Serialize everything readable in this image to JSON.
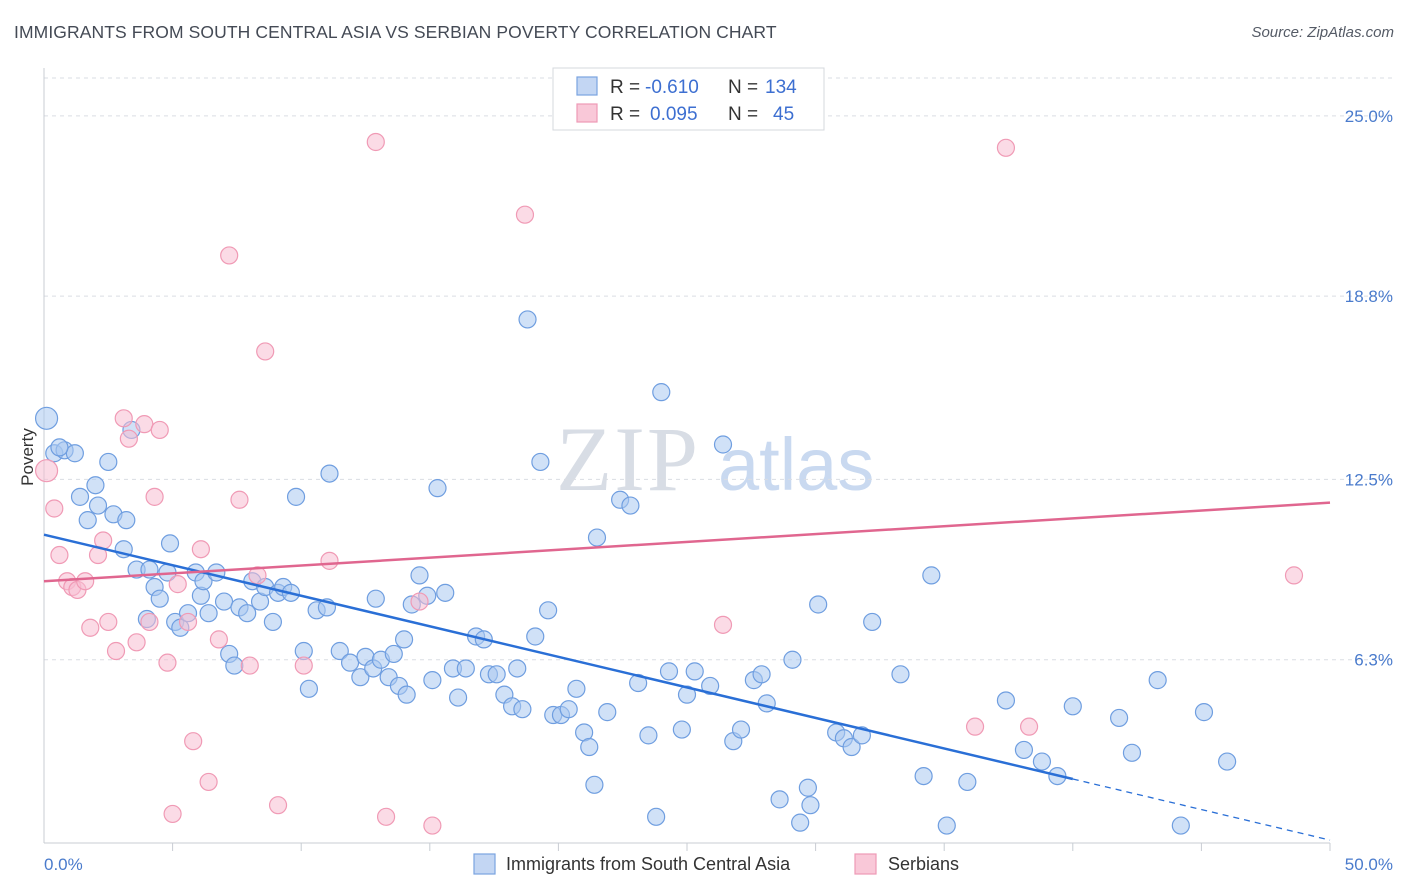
{
  "title": "IMMIGRANTS FROM SOUTH CENTRAL ASIA VS SERBIAN POVERTY CORRELATION CHART",
  "source": "Source: ZipAtlas.com",
  "watermark": {
    "zip": "ZIP",
    "atlas": "atlas"
  },
  "colors": {
    "blue": "#6f9ee0",
    "blue_line": "#2a6fd6",
    "pink": "#f09ab5",
    "pink_line": "#e0668f",
    "axis_text": "#4a7bcc",
    "grid": "#dadde3"
  },
  "legend": {
    "rows": [
      {
        "r_label": "R =",
        "r_value": "-0.610",
        "n_label": "N =",
        "n_value": "134"
      },
      {
        "r_label": "R =",
        "r_value": "0.095",
        "n_label": "N =",
        "n_value": "45"
      }
    ]
  },
  "bottom_legend": [
    "Immigrants from South Central Asia",
    "Serbians"
  ],
  "chart_data": {
    "type": "scatter",
    "title": "IMMIGRANTS FROM SOUTH CENTRAL ASIA VS SERBIAN POVERTY CORRELATION CHART",
    "xlabel": "",
    "ylabel": "Poverty",
    "xlim": [
      0,
      50
    ],
    "ylim": [
      0,
      26.3
    ],
    "x_tick_labels": [
      "0.0%",
      "50.0%"
    ],
    "y_ticks": [
      6.3,
      12.5,
      18.8,
      25.0
    ],
    "y_tick_labels": [
      "6.3%",
      "12.5%",
      "18.8%",
      "25.0%"
    ],
    "grid": true,
    "series": [
      {
        "name": "Immigrants from South Central Asia",
        "color": "#6f9ee0",
        "trend": {
          "x": [
            0,
            40
          ],
          "y": [
            10.6,
            2.2
          ],
          "dashed_to": [
            50,
            0.1
          ]
        },
        "points": [
          [
            0.1,
            14.6
          ],
          [
            0.4,
            13.4
          ],
          [
            0.8,
            13.5
          ],
          [
            1.2,
            13.4
          ],
          [
            0.6,
            13.6
          ],
          [
            1.4,
            11.9
          ],
          [
            1.7,
            11.1
          ],
          [
            2.0,
            12.3
          ],
          [
            2.1,
            11.6
          ],
          [
            2.5,
            13.1
          ],
          [
            2.7,
            11.3
          ],
          [
            3.2,
            11.1
          ],
          [
            3.1,
            10.1
          ],
          [
            3.4,
            14.2
          ],
          [
            3.6,
            9.4
          ],
          [
            4.0,
            7.7
          ],
          [
            4.1,
            9.4
          ],
          [
            4.3,
            8.8
          ],
          [
            4.5,
            8.4
          ],
          [
            4.8,
            9.3
          ],
          [
            4.9,
            10.3
          ],
          [
            5.1,
            7.6
          ],
          [
            5.3,
            7.4
          ],
          [
            5.6,
            7.9
          ],
          [
            5.9,
            9.3
          ],
          [
            6.1,
            8.5
          ],
          [
            6.2,
            9.0
          ],
          [
            6.4,
            7.9
          ],
          [
            6.7,
            9.3
          ],
          [
            7.0,
            8.3
          ],
          [
            7.2,
            6.5
          ],
          [
            7.4,
            6.1
          ],
          [
            7.6,
            8.1
          ],
          [
            7.9,
            7.9
          ],
          [
            8.1,
            9.0
          ],
          [
            8.4,
            8.3
          ],
          [
            8.6,
            8.8
          ],
          [
            8.9,
            7.6
          ],
          [
            9.1,
            8.6
          ],
          [
            9.3,
            8.8
          ],
          [
            9.6,
            8.6
          ],
          [
            9.8,
            11.9
          ],
          [
            10.1,
            6.6
          ],
          [
            10.3,
            5.3
          ],
          [
            10.6,
            8.0
          ],
          [
            11.0,
            8.1
          ],
          [
            11.1,
            12.7
          ],
          [
            11.5,
            6.6
          ],
          [
            11.9,
            6.2
          ],
          [
            12.3,
            5.7
          ],
          [
            12.5,
            6.4
          ],
          [
            12.8,
            6.0
          ],
          [
            12.9,
            8.4
          ],
          [
            13.1,
            6.3
          ],
          [
            13.4,
            5.7
          ],
          [
            13.6,
            6.5
          ],
          [
            13.8,
            5.4
          ],
          [
            14.0,
            7.0
          ],
          [
            14.1,
            5.1
          ],
          [
            14.3,
            8.2
          ],
          [
            14.6,
            9.2
          ],
          [
            14.9,
            8.5
          ],
          [
            15.1,
            5.6
          ],
          [
            15.3,
            12.2
          ],
          [
            15.6,
            8.6
          ],
          [
            15.9,
            6.0
          ],
          [
            16.1,
            5.0
          ],
          [
            16.4,
            6.0
          ],
          [
            16.8,
            7.1
          ],
          [
            17.1,
            7.0
          ],
          [
            17.3,
            5.8
          ],
          [
            17.6,
            5.8
          ],
          [
            17.9,
            5.1
          ],
          [
            18.2,
            4.7
          ],
          [
            18.4,
            6.0
          ],
          [
            18.6,
            4.6
          ],
          [
            18.8,
            18.0
          ],
          [
            19.1,
            7.1
          ],
          [
            19.3,
            13.1
          ],
          [
            19.6,
            8.0
          ],
          [
            19.8,
            4.4
          ],
          [
            20.1,
            4.4
          ],
          [
            20.4,
            4.6
          ],
          [
            20.7,
            5.3
          ],
          [
            21.0,
            3.8
          ],
          [
            21.2,
            3.3
          ],
          [
            21.4,
            2.0
          ],
          [
            21.5,
            10.5
          ],
          [
            21.9,
            4.5
          ],
          [
            22.4,
            11.8
          ],
          [
            22.8,
            11.6
          ],
          [
            23.1,
            5.5
          ],
          [
            23.5,
            3.7
          ],
          [
            23.8,
            0.9
          ],
          [
            24.0,
            15.5
          ],
          [
            24.3,
            5.9
          ],
          [
            24.8,
            3.9
          ],
          [
            25.0,
            5.1
          ],
          [
            25.3,
            5.9
          ],
          [
            25.9,
            5.4
          ],
          [
            26.4,
            13.7
          ],
          [
            26.8,
            3.5
          ],
          [
            27.1,
            3.9
          ],
          [
            27.6,
            5.6
          ],
          [
            27.9,
            5.8
          ],
          [
            28.1,
            4.8
          ],
          [
            28.6,
            1.5
          ],
          [
            29.1,
            6.3
          ],
          [
            29.4,
            0.7
          ],
          [
            29.7,
            1.9
          ],
          [
            29.8,
            1.3
          ],
          [
            30.1,
            8.2
          ],
          [
            30.8,
            3.8
          ],
          [
            31.1,
            3.6
          ],
          [
            31.4,
            3.3
          ],
          [
            31.8,
            3.7
          ],
          [
            32.2,
            7.6
          ],
          [
            33.3,
            5.8
          ],
          [
            34.2,
            2.3
          ],
          [
            34.5,
            9.2
          ],
          [
            35.1,
            0.6
          ],
          [
            35.9,
            2.1
          ],
          [
            37.4,
            4.9
          ],
          [
            38.1,
            3.2
          ],
          [
            38.8,
            2.8
          ],
          [
            39.4,
            2.3
          ],
          [
            40.0,
            4.7
          ],
          [
            41.8,
            4.3
          ],
          [
            42.3,
            3.1
          ],
          [
            43.3,
            5.6
          ],
          [
            44.2,
            0.6
          ],
          [
            45.1,
            4.5
          ],
          [
            46.0,
            2.8
          ]
        ]
      },
      {
        "name": "Serbians",
        "color": "#f09ab5",
        "trend": {
          "x": [
            0,
            50
          ],
          "y": [
            9.0,
            11.7
          ]
        },
        "points": [
          [
            0.1,
            12.8
          ],
          [
            0.4,
            11.5
          ],
          [
            0.6,
            9.9
          ],
          [
            0.9,
            9.0
          ],
          [
            1.1,
            8.8
          ],
          [
            1.3,
            8.7
          ],
          [
            1.6,
            9.0
          ],
          [
            1.8,
            7.4
          ],
          [
            2.1,
            9.9
          ],
          [
            2.3,
            10.4
          ],
          [
            2.5,
            7.6
          ],
          [
            2.8,
            6.6
          ],
          [
            3.1,
            14.6
          ],
          [
            3.3,
            13.9
          ],
          [
            3.6,
            6.9
          ],
          [
            3.9,
            14.4
          ],
          [
            4.1,
            7.6
          ],
          [
            4.3,
            11.9
          ],
          [
            4.5,
            14.2
          ],
          [
            4.8,
            6.2
          ],
          [
            5.0,
            1.0
          ],
          [
            5.2,
            8.9
          ],
          [
            5.6,
            7.6
          ],
          [
            5.8,
            3.5
          ],
          [
            6.1,
            10.1
          ],
          [
            6.4,
            2.1
          ],
          [
            6.8,
            7.0
          ],
          [
            7.2,
            20.2
          ],
          [
            7.6,
            11.8
          ],
          [
            8.0,
            6.1
          ],
          [
            8.3,
            9.2
          ],
          [
            8.6,
            16.9
          ],
          [
            9.1,
            1.3
          ],
          [
            10.1,
            6.1
          ],
          [
            11.1,
            9.7
          ],
          [
            12.9,
            24.1
          ],
          [
            13.3,
            0.9
          ],
          [
            14.6,
            8.3
          ],
          [
            15.1,
            0.6
          ],
          [
            18.7,
            21.6
          ],
          [
            26.4,
            7.5
          ],
          [
            36.2,
            4.0
          ],
          [
            37.4,
            23.9
          ],
          [
            38.3,
            4.0
          ],
          [
            48.6,
            9.2
          ]
        ]
      }
    ]
  }
}
